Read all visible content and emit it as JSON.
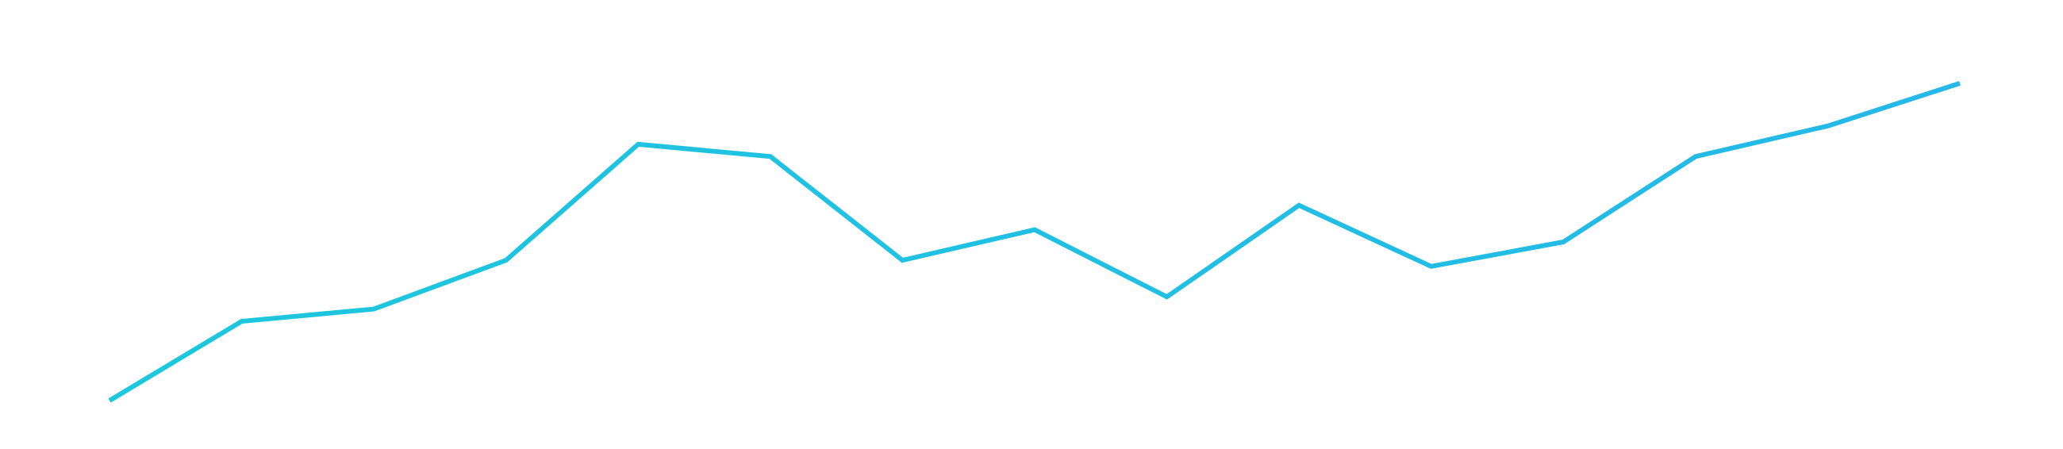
{
  "colors": {
    "background": "#ffffff",
    "series_gradient_start": "#1cc8dc",
    "series_gradient_end": "#25b8e8"
  },
  "chart_data": {
    "type": "line",
    "title": "",
    "xlabel": "",
    "ylabel": "",
    "x": [
      1,
      2,
      3,
      4,
      5,
      6,
      7,
      8,
      9,
      10,
      11,
      12,
      13,
      14,
      15
    ],
    "series": [
      {
        "values": [
          8,
          21,
          23,
          31,
          50,
          48,
          31,
          36,
          25,
          40,
          30,
          34,
          48,
          53,
          60
        ]
      }
    ],
    "ylim": [
      0,
      66
    ],
    "grid": false,
    "axes_visible": false,
    "legend": "none"
  }
}
